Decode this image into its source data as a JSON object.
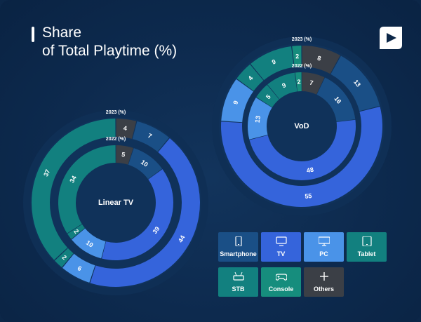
{
  "title": "Share\nof Total Playtime (%)",
  "logo_icon": "play-square-logo-icon",
  "colors": {
    "Smartphone": "#1a4f86",
    "TV": "#3564db",
    "PC": "#4a93e8",
    "Tablet": "#12807f",
    "STB": "#12807f",
    "Console": "#168d7d",
    "Others": "#3b3f46",
    "track": "#0f325a"
  },
  "legend": [
    {
      "label": "Smartphone",
      "icon": "smartphone-icon",
      "color": "#1a4f86"
    },
    {
      "label": "TV",
      "icon": "tv-icon",
      "color": "#3564db"
    },
    {
      "label": "PC",
      "icon": "pc-monitor-icon",
      "color": "#4a93e8"
    },
    {
      "label": "Tablet",
      "icon": "tablet-icon",
      "color": "#12807f"
    },
    {
      "label": "STB",
      "icon": "stb-icon",
      "color": "#12807f"
    },
    {
      "label": "Console",
      "icon": "gamepad-icon",
      "color": "#168d7d"
    },
    {
      "label": "Others",
      "icon": "plus-icon",
      "color": "#3b3f46"
    }
  ],
  "chart_data": [
    {
      "type": "donut",
      "center_label": "Linear TV",
      "rings": [
        {
          "year_label": "2023 (%)",
          "values": [
            {
              "category": "Others",
              "value": 4
            },
            {
              "category": "Smartphone",
              "value": 7
            },
            {
              "category": "TV",
              "value": 44
            },
            {
              "category": "PC",
              "value": 6
            },
            {
              "category": "Tablet",
              "value": 2
            },
            {
              "category": "STB",
              "value": 37
            }
          ]
        },
        {
          "year_label": "2022 (%)",
          "values": [
            {
              "category": "Others",
              "value": 5
            },
            {
              "category": "Smartphone",
              "value": 10
            },
            {
              "category": "TV",
              "value": 39
            },
            {
              "category": "PC",
              "value": 10
            },
            {
              "category": "Tablet",
              "value": 2
            },
            {
              "category": "STB",
              "value": 34
            }
          ]
        }
      ]
    },
    {
      "type": "donut",
      "center_label": "VoD",
      "rings": [
        {
          "year_label": "2023 (%)",
          "values": [
            {
              "category": "Others",
              "value": 8
            },
            {
              "category": "Smartphone",
              "value": 13
            },
            {
              "category": "TV",
              "value": 55
            },
            {
              "category": "PC",
              "value": 9
            },
            {
              "category": "Tablet",
              "value": 4
            },
            {
              "category": "STB",
              "value": 9
            },
            {
              "category": "Console",
              "value": 2
            }
          ]
        },
        {
          "year_label": "2022 (%)",
          "values": [
            {
              "category": "Others",
              "value": 7
            },
            {
              "category": "Smartphone",
              "value": 16
            },
            {
              "category": "TV",
              "value": 48
            },
            {
              "category": "PC",
              "value": 13
            },
            {
              "category": "Tablet",
              "value": 5
            },
            {
              "category": "STB",
              "value": 9
            },
            {
              "category": "Console",
              "value": 2
            }
          ]
        }
      ]
    }
  ]
}
